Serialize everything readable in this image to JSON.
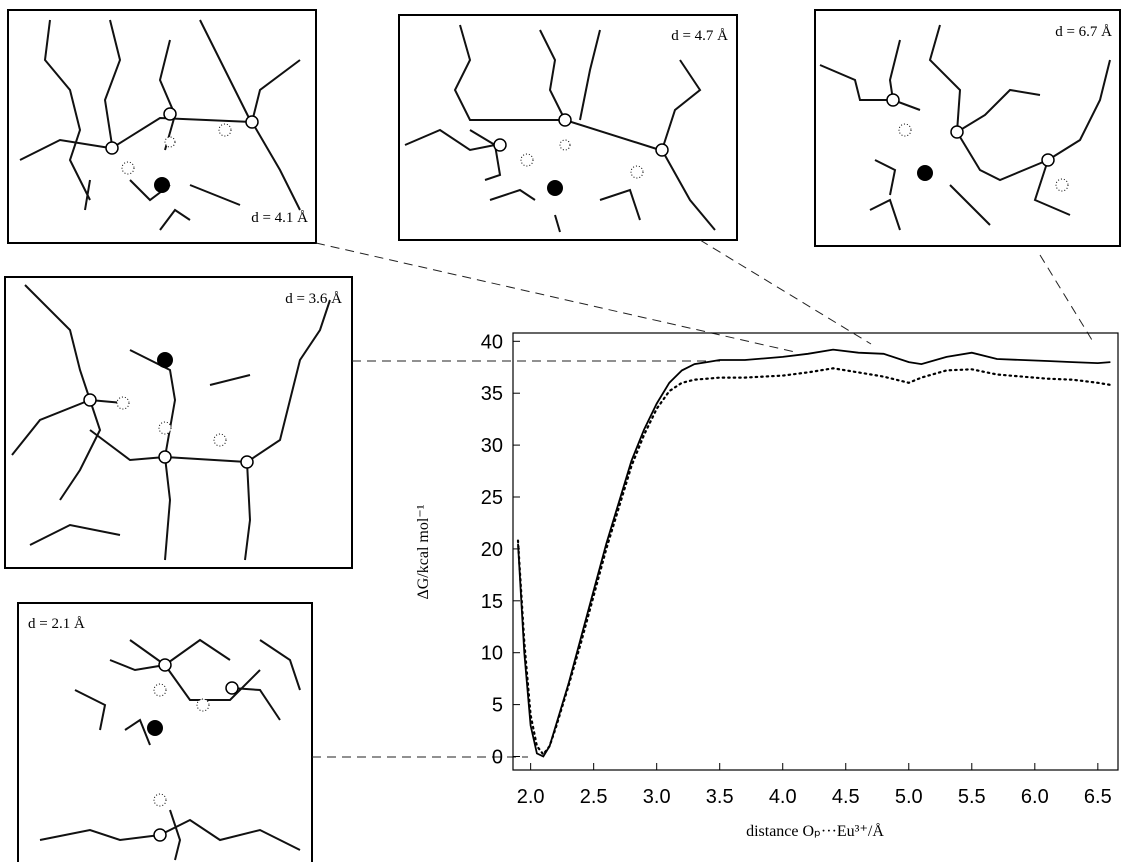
{
  "chart_data": {
    "type": "line",
    "ylabel": "ΔG/kcal mol⁻¹",
    "xlabel": "distance Oₚ···Eu³⁺/Å",
    "x": [
      1.9,
      1.95,
      2.0,
      2.05,
      2.1,
      2.15,
      2.2,
      2.3,
      2.4,
      2.5,
      2.6,
      2.7,
      2.8,
      2.9,
      3.0,
      3.1,
      3.2,
      3.3,
      3.4,
      3.5,
      3.7,
      4.0,
      4.2,
      4.4,
      4.6,
      4.8,
      5.0,
      5.1,
      5.3,
      5.5,
      5.7,
      5.9,
      6.1,
      6.3,
      6.5,
      6.6
    ],
    "series": [
      {
        "color": "#000000",
        "style": "solid",
        "values": [
          20.5,
          10,
          3,
          0.3,
          0,
          1,
          3,
          7,
          11.5,
          16,
          20.5,
          24.5,
          28.5,
          31.5,
          34,
          36,
          37.2,
          37.8,
          38,
          38.2,
          38.2,
          38.5,
          38.8,
          39.2,
          38.9,
          38.8,
          38,
          37.8,
          38.5,
          38.9,
          38.3,
          38.2,
          38.1,
          38,
          37.9,
          38
        ]
      },
      {
        "color": "#000000",
        "style": "dotted",
        "values": [
          20.8,
          11,
          4,
          1,
          0.2,
          1,
          2.8,
          6.8,
          11,
          15.5,
          20,
          24,
          28,
          31,
          33.5,
          35.2,
          36,
          36.3,
          36.4,
          36.5,
          36.5,
          36.7,
          37,
          37.4,
          37,
          36.6,
          36,
          36.5,
          37.2,
          37.3,
          36.8,
          36.6,
          36.4,
          36.3,
          36,
          35.8
        ]
      }
    ],
    "xlim": [
      1.86,
      6.66
    ],
    "ylim": [
      -1.3,
      40.8
    ],
    "xticks": [
      {
        "value": 2,
        "label": "2.0"
      },
      2.5,
      {
        "value": 3,
        "label": "3.0"
      },
      3.5,
      {
        "value": 4,
        "label": "4.0"
      },
      4.5,
      {
        "value": 5,
        "label": "5.0"
      },
      5.5,
      {
        "value": 6,
        "label": "6.0"
      },
      6.5
    ],
    "yticks": [
      0,
      5,
      10,
      15,
      20,
      25,
      30,
      35,
      40
    ]
  },
  "panels": [
    {
      "label": "d = 4.1 Å"
    },
    {
      "label": "d = 4.7 Å"
    },
    {
      "label": "d = 6.7 Å"
    },
    {
      "label": "d = 3.6 Å"
    },
    {
      "label": "d = 2.1 Å"
    }
  ]
}
